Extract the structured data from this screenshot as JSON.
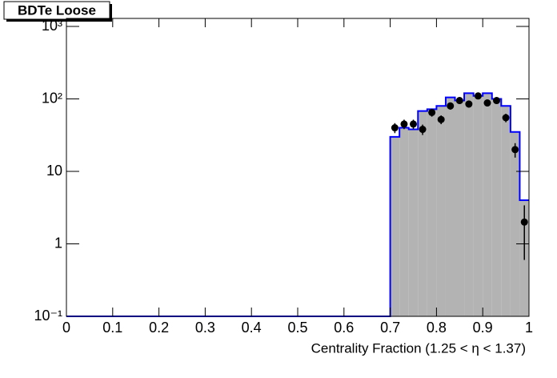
{
  "chart_data": {
    "type": "histogram",
    "title": "BDTe Loose",
    "x_label": "Centrality Fraction (1.25 <   η < 1.37)",
    "log_y": true,
    "xlim": [
      0,
      1
    ],
    "xticks": [
      0,
      0.1,
      0.2,
      0.3,
      0.4,
      0.5,
      0.6,
      0.7,
      0.8,
      0.9,
      1
    ],
    "ylim": [
      0.1,
      1290
    ],
    "yticks": [
      {
        "value": 0.1,
        "label": "10⁻¹"
      },
      1,
      10,
      {
        "value": 100,
        "label": "10²"
      },
      {
        "value": 1000,
        "label": "10³"
      }
    ],
    "bins": [
      0,
      0.02,
      0.04,
      0.06,
      0.08,
      0.1,
      0.12,
      0.14,
      0.16,
      0.18,
      0.2,
      0.22,
      0.24,
      0.26,
      0.28,
      0.3,
      0.32,
      0.34,
      0.36,
      0.38,
      0.4,
      0.42,
      0.44,
      0.46,
      0.48,
      0.5,
      0.52,
      0.54,
      0.56,
      0.58,
      0.6,
      0.62,
      0.64,
      0.66,
      0.68,
      0.7,
      0.72,
      0.74,
      0.76,
      0.78,
      0.8,
      0.82,
      0.84,
      0.86,
      0.88,
      0.9,
      0.92,
      0.94,
      0.96,
      0.98,
      1
    ],
    "counts": [
      0,
      0,
      0,
      0,
      0,
      0,
      0,
      0,
      0,
      0,
      0,
      0,
      0,
      0,
      0,
      0,
      0,
      0,
      0,
      0,
      0,
      0,
      0,
      0,
      0,
      0,
      0,
      0,
      0,
      0,
      0,
      0,
      0,
      0,
      0,
      30,
      40,
      38,
      68,
      72,
      80,
      105,
      95,
      120,
      110,
      120,
      100,
      80,
      35,
      4
    ],
    "fill_color": "#b3b3b3",
    "line_color": "#0000ff",
    "points": {
      "color": "#000000",
      "x": [
        0.71,
        0.73,
        0.75,
        0.77,
        0.79,
        0.81,
        0.83,
        0.85,
        0.87,
        0.89,
        0.91,
        0.93,
        0.95,
        0.97,
        0.99
      ],
      "values": [
        40,
        45,
        45,
        38,
        65,
        52,
        80,
        95,
        85,
        110,
        88,
        95,
        55,
        20,
        2
      ],
      "errors": [
        6.3,
        6.7,
        6.7,
        6.2,
        8.1,
        7.2,
        8.9,
        9.7,
        9.2,
        10.5,
        9.4,
        9.7,
        7.4,
        4.5,
        1.4
      ]
    }
  }
}
